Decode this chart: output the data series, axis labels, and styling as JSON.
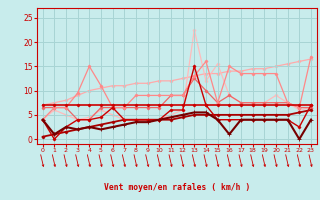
{
  "x": [
    0,
    1,
    2,
    3,
    4,
    5,
    6,
    7,
    8,
    9,
    10,
    11,
    12,
    13,
    14,
    15,
    16,
    17,
    18,
    19,
    20,
    21,
    22,
    23
  ],
  "bg_color": "#c8ecec",
  "grid_color": "#a8d4d4",
  "xlabel": "Vent moyen/en rafales ( km/h )",
  "xlabel_color": "#cc0000",
  "tick_color": "#cc0000",
  "ylim": [
    -1,
    27
  ],
  "xlim": [
    -0.5,
    23.5
  ],
  "yticks": [
    0,
    5,
    10,
    15,
    20,
    25
  ],
  "series": [
    {
      "y": [
        7,
        7,
        7,
        7,
        7,
        7,
        7,
        7,
        7,
        7,
        7,
        7,
        7,
        7,
        7,
        7,
        7,
        7,
        7,
        7,
        7,
        7,
        7,
        7
      ],
      "color": "#cc0000",
      "lw": 1.2,
      "marker": "D",
      "ms": 1.5,
      "zorder": 5
    },
    {
      "y": [
        4,
        0,
        2.5,
        4,
        4,
        4.5,
        6.5,
        4,
        4,
        4,
        4,
        6,
        6,
        15,
        7,
        4,
        4,
        4,
        4,
        4,
        4,
        4,
        2.5,
        7
      ],
      "color": "#cc0000",
      "lw": 1.0,
      "marker": "D",
      "ms": 1.5,
      "zorder": 4
    },
    {
      "y": [
        4,
        1,
        2.5,
        2,
        2.5,
        2,
        2.5,
        3,
        3.5,
        3.5,
        4,
        4.5,
        5,
        5.5,
        5.5,
        4,
        1,
        4,
        4,
        4,
        4,
        4,
        0,
        4
      ],
      "color": "#770000",
      "lw": 1.5,
      "marker": "+",
      "ms": 2.5,
      "zorder": 6
    },
    {
      "y": [
        0.5,
        1,
        1.5,
        2,
        2.5,
        3,
        3.5,
        4,
        4,
        4,
        4,
        4,
        4.5,
        5,
        5,
        5,
        5,
        5,
        5,
        5,
        5,
        5,
        5.5,
        6
      ],
      "color": "#aa0000",
      "lw": 1.3,
      "marker": "D",
      "ms": 1.5,
      "zorder": 3
    },
    {
      "y": [
        6.5,
        6.5,
        6.5,
        4,
        4,
        6.5,
        6.5,
        6.5,
        6.5,
        6.5,
        6.5,
        9,
        9,
        12.5,
        10,
        7.5,
        9,
        7.5,
        7.5,
        7.5,
        7.5,
        7.5,
        6.5,
        6.5
      ],
      "color": "#ee6666",
      "lw": 0.9,
      "marker": "D",
      "ms": 1.5,
      "zorder": 2
    },
    {
      "y": [
        4,
        6.5,
        6.5,
        9.5,
        15,
        11,
        6.5,
        6.5,
        9,
        9,
        9,
        9,
        9,
        13,
        16,
        7.5,
        15,
        13.5,
        13.5,
        13.5,
        13.5,
        7.5,
        6.5,
        17
      ],
      "color": "#ff8888",
      "lw": 0.9,
      "marker": "D",
      "ms": 1.5,
      "zorder": 2
    },
    {
      "y": [
        7,
        7.5,
        8,
        9,
        10,
        10.5,
        11,
        11,
        11.5,
        11.5,
        12,
        12,
        12.5,
        13,
        13.5,
        13.5,
        14,
        14,
        14.5,
        14.5,
        15,
        15.5,
        16,
        16.5
      ],
      "color": "#ffaaaa",
      "lw": 0.9,
      "marker": "D",
      "ms": 1.5,
      "zorder": 1
    },
    {
      "y": [
        4,
        6,
        5,
        4,
        4.5,
        6,
        5,
        4,
        4,
        4,
        4,
        5,
        6,
        22.5,
        12,
        15.5,
        9,
        7.5,
        7.5,
        7.5,
        9,
        7.5,
        6,
        6.5
      ],
      "color": "#ffbbbb",
      "lw": 0.9,
      "marker": "D",
      "ms": 1.5,
      "zorder": 1
    }
  ]
}
